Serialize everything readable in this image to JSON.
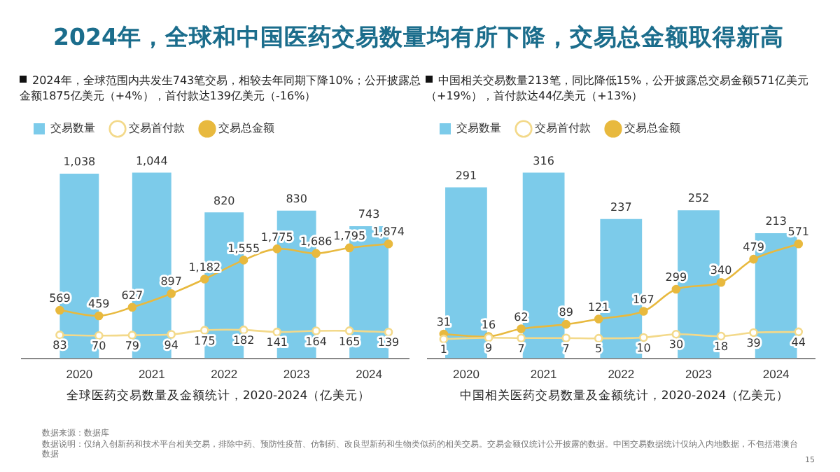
{
  "chart_data": [
    {
      "type": "bar",
      "title": "2024年，全球和中国医药交易数量均有所下降，交易总金额取得新高",
      "subtitle": "2024年，全球范围内共发生743笔交易，相较去年同期下降10%；公开披露总金额1875亿美元（+4%），首付款达139亿美元（-16%）",
      "xlabel": "全球医药交易数量及金额统计，2020-2024（亿美元）",
      "x": [
        2020,
        2021,
        2022,
        2023,
        2024
      ],
      "xlim": [
        2019.2,
        2024.55
      ],
      "xticks": [
        2020,
        2021,
        2022,
        2023,
        2024
      ],
      "tick_labels": "x",
      "legend": "top left",
      "marker": "circle",
      "series": [
        {
          "name": "交易数量",
          "color": "#7ccbea",
          "values": [
            1038,
            1044,
            820,
            830,
            743
          ],
          "value_labels": [
            "1,038",
            "1,044",
            "820",
            "830",
            "743"
          ]
        },
        {
          "name": "交易首付款",
          "type": "line",
          "axis": "y2",
          "color": "#f3d98a",
          "x": [
            2019.73,
            2020.27,
            2020.73,
            2021.27,
            2021.73,
            2022.27,
            2022.73,
            2023.27,
            2023.73,
            2024.27
          ],
          "values": [
            83,
            70,
            79,
            94,
            175,
            182,
            141,
            164,
            165,
            139
          ],
          "value_labels": [
            "83",
            "70",
            "79",
            "94",
            "175",
            "182",
            "141",
            "164",
            "165",
            "139"
          ]
        },
        {
          "name": "交易总金额",
          "type": "line",
          "axis": "y2",
          "color": "#e8b93e",
          "x": [
            2019.73,
            2020.27,
            2020.73,
            2021.27,
            2021.73,
            2022.27,
            2022.73,
            2023.27,
            2023.73,
            2024.27
          ],
          "values": [
            569,
            459,
            627,
            897,
            1182,
            1555,
            1775,
            1686,
            1795,
            1874
          ],
          "value_labels": [
            "569",
            "459",
            "627",
            "897",
            "1,182",
            "1,555",
            "1,775",
            "1,686",
            "1,795",
            "1,874"
          ]
        }
      ],
      "annotations": [
        "数据来源：数据库",
        "数据说明：仅纳入创新药和技术平台相关交易，排除中药、预防性疫苗、仿制药、改良型新药和生物类似药的相关交易。交易金额仅统计公开披露的数据。中国交易数据统计仅纳入内地数据，不包括港澳台数据",
        "15"
      ]
    },
    {
      "type": "bar",
      "subtitle": "中国相关交易数量213笔，同比降低15%，公开披露总交易金额571亿美元（+19%），首付款达44亿美元（+13%）",
      "xlabel": "中国相关医药交易数量及金额统计，2020-2024（亿美元）",
      "x": [
        2020,
        2021,
        2022,
        2023,
        2024
      ],
      "xlim": [
        2019.5,
        2024.5
      ],
      "xticks": [
        2020,
        2021,
        2022,
        2023,
        2024
      ],
      "tick_labels": "x",
      "legend": "top left",
      "marker": "circle",
      "data_labels": true,
      "series": [
        {
          "name": "交易数量",
          "color": "#7ccbea",
          "values": [
            291,
            316,
            237,
            252,
            213
          ]
        },
        {
          "name": "交易首付款",
          "type": "line",
          "axis": "y2",
          "color": "#f3d98a",
          "x": [
            2019.71,
            2020.29,
            2020.71,
            2021.29,
            2021.71,
            2022.29,
            2022.71,
            2023.29,
            2023.71,
            2024.29
          ],
          "values": [
            1,
            9,
            7,
            7,
            5,
            10,
            30,
            18,
            39,
            44
          ]
        },
        {
          "name": "交易总金额",
          "type": "line",
          "axis": "y2",
          "color": "#e8b93e",
          "x": [
            2019.71,
            2020.29,
            2020.71,
            2021.29,
            2021.71,
            2022.29,
            2022.71,
            2023.29,
            2023.71,
            2024.29
          ],
          "values": [
            31,
            16,
            62,
            89,
            121,
            167,
            299,
            340,
            479,
            571
          ]
        }
      ]
    }
  ]
}
